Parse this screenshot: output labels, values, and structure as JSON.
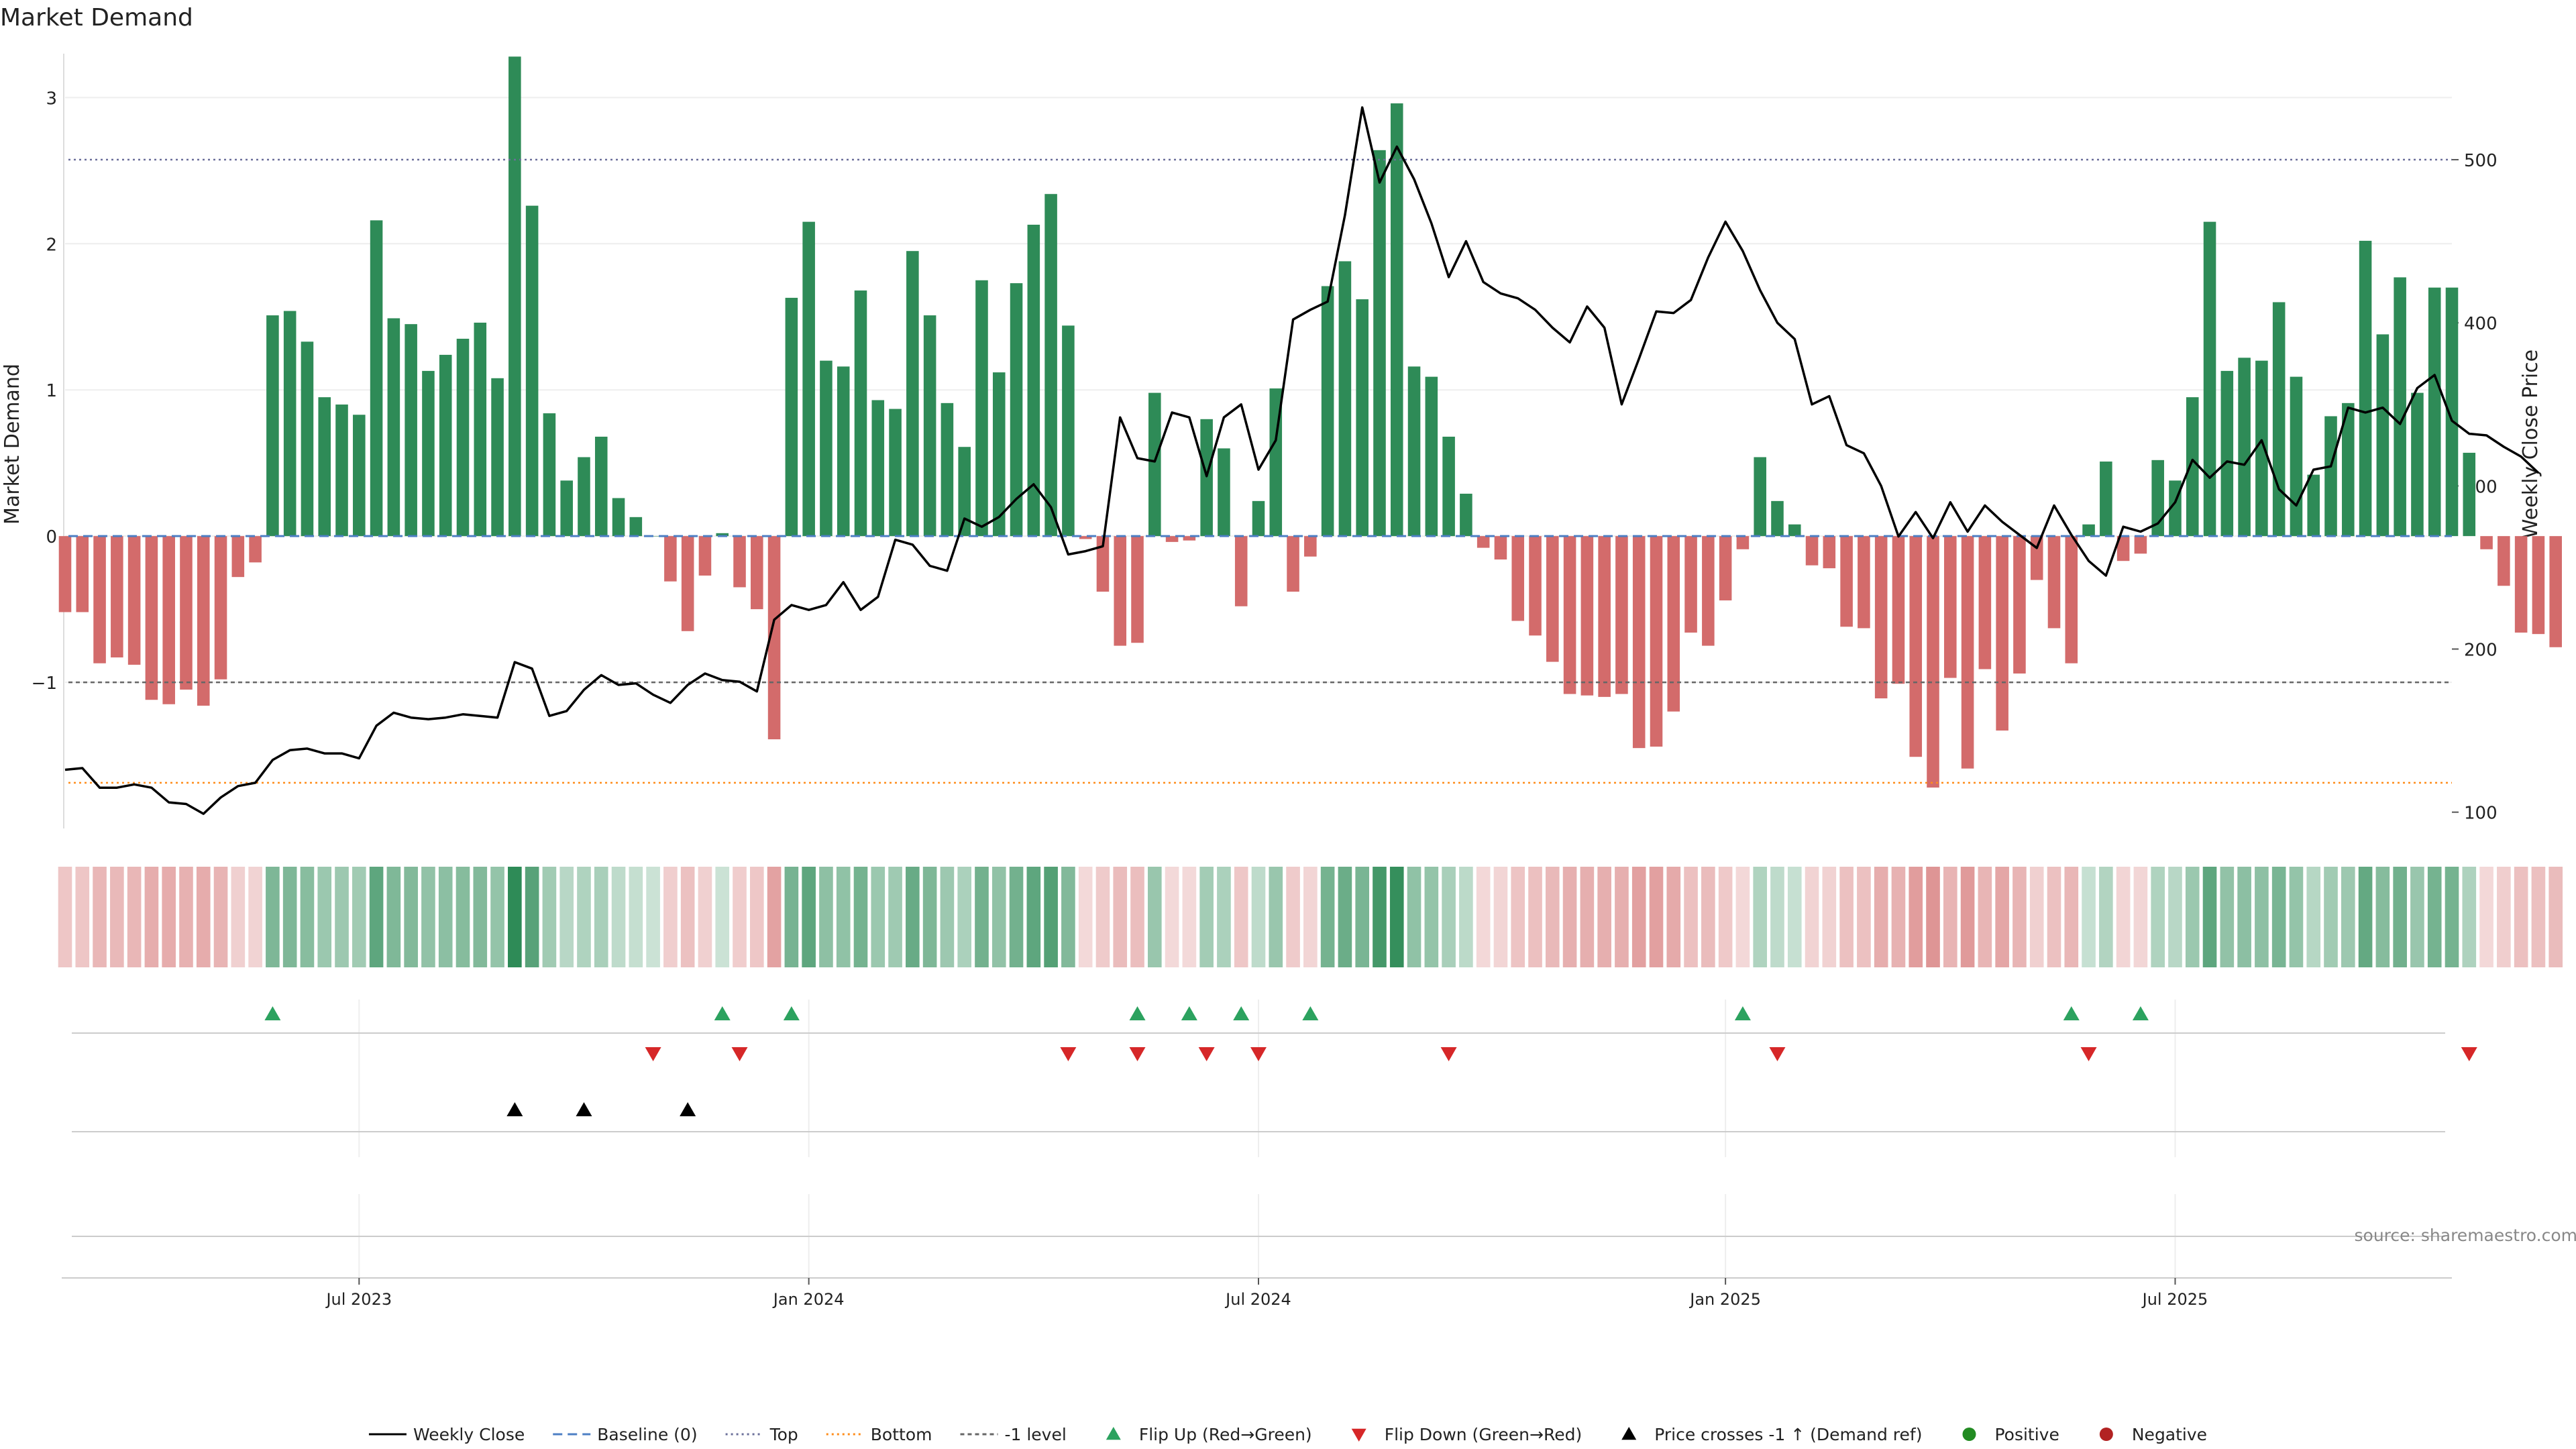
{
  "chart_data": {
    "type": "bar",
    "title": "Market Demand",
    "ylabel": "Market Demand",
    "y2label": "Weekly Close Price",
    "ylim": [
      -2.0,
      3.3
    ],
    "y2lim": [
      90,
      565
    ],
    "yticks": [
      -1,
      0,
      1,
      2,
      3
    ],
    "yticklabels": [
      "−1",
      "0",
      "1",
      "2",
      "3"
    ],
    "y2ticks": [
      100,
      200,
      300,
      400,
      500
    ],
    "y2ticklabels": [
      "100",
      "200",
      "300",
      "400",
      "500"
    ],
    "xlim": [
      "2023-03-06",
      "2025-10-27"
    ],
    "xticks": [
      {
        "date": "2023-07-03",
        "label": "Jul 2023"
      },
      {
        "date": "2024-01-01",
        "label": "Jan 2024"
      },
      {
        "date": "2024-07-01",
        "label": "Jul 2024"
      },
      {
        "date": "2025-01-06",
        "label": "Jan 2025"
      },
      {
        "date": "2025-07-07",
        "label": "Jul 2025"
      }
    ],
    "reference_lines": [
      {
        "name": "Top",
        "axis": "right",
        "value": 500,
        "color": "#6b6f9a"
      },
      {
        "name": "Bottom",
        "axis": "right",
        "value": 118,
        "color": "#ff8c1a"
      },
      {
        "name": "-1 level",
        "axis": "left",
        "value": -1,
        "color": "#666666"
      },
      {
        "name": "Baseline (0)",
        "axis": "left",
        "value": 0,
        "color": "#4d7fc4"
      }
    ],
    "start_date": "2023-03-06",
    "week_step": 1,
    "demand": [
      -0.52,
      -0.52,
      -0.87,
      -0.83,
      -0.88,
      -1.12,
      -1.15,
      -1.05,
      -1.16,
      -0.98,
      -0.28,
      -0.18,
      1.51,
      1.54,
      1.33,
      0.95,
      0.9,
      0.83,
      2.16,
      1.49,
      1.45,
      1.13,
      1.24,
      1.35,
      1.46,
      1.08,
      3.28,
      2.26,
      0.84,
      0.38,
      0.54,
      0.68,
      0.26,
      0.13,
      0.0,
      -0.31,
      -0.65,
      -0.27,
      0.02,
      -0.35,
      -0.5,
      -1.39,
      1.63,
      2.15,
      1.2,
      1.16,
      1.68,
      0.93,
      0.87,
      1.95,
      1.51,
      0.91,
      0.61,
      1.75,
      1.12,
      1.73,
      2.13,
      2.34,
      1.44,
      -0.02,
      -0.38,
      -0.75,
      -0.73,
      0.98,
      -0.04,
      -0.03,
      0.8,
      0.6,
      -0.48,
      0.24,
      1.01,
      -0.38,
      -0.14,
      1.71,
      1.88,
      1.62,
      2.64,
      2.96,
      1.16,
      1.09,
      0.68,
      0.29,
      -0.08,
      -0.16,
      -0.58,
      -0.68,
      -0.86,
      -1.08,
      -1.09,
      -1.1,
      -1.08,
      -1.45,
      -1.44,
      -1.2,
      -0.66,
      -0.75,
      -0.44,
      -0.09,
      0.54,
      0.24,
      0.08,
      -0.2,
      -0.22,
      -0.62,
      -0.63,
      -1.11,
      -1.01,
      -1.51,
      -1.72,
      -0.97,
      -1.59,
      -0.91,
      -1.33,
      -0.94,
      -0.3,
      -0.63,
      -0.87,
      0.08,
      0.51,
      -0.17,
      -0.12,
      0.52,
      0.38,
      0.95,
      2.15,
      1.13,
      1.22,
      1.2,
      1.6,
      1.09,
      0.42,
      0.82,
      0.91,
      2.02,
      1.38,
      1.77,
      0.98,
      1.7,
      1.7,
      0.57,
      -0.09,
      -0.34,
      -0.66,
      -0.67,
      -0.76
    ],
    "weekly_close": [
      126,
      127,
      115,
      115,
      117,
      115,
      106,
      105,
      99,
      109,
      116,
      118,
      132,
      138,
      139,
      136,
      136,
      133,
      153,
      161,
      158,
      157,
      158,
      160,
      159,
      158,
      192,
      188,
      159,
      162,
      175,
      184,
      178,
      179,
      172,
      167,
      178,
      185,
      181,
      180,
      174,
      218,
      227,
      224,
      227,
      241,
      224,
      232,
      267,
      264,
      251,
      248,
      280,
      275,
      281,
      292,
      301,
      287,
      258,
      260,
      263,
      342,
      317,
      315,
      345,
      342,
      306,
      342,
      350,
      310,
      328,
      402,
      408,
      413,
      466,
      532,
      486,
      508,
      488,
      461,
      428,
      450,
      425,
      418,
      415,
      408,
      397,
      388,
      410,
      397,
      350,
      378,
      407,
      406,
      414,
      440,
      462,
      444,
      420,
      400,
      390,
      350,
      355,
      325,
      320,
      300,
      269,
      284,
      268,
      290,
      272,
      288,
      278,
      270,
      262,
      288,
      270,
      254,
      245,
      275,
      272,
      277,
      290,
      316,
      305,
      315,
      313,
      328,
      298,
      288,
      310,
      312,
      348,
      345,
      348,
      338,
      360,
      368,
      340,
      332,
      331,
      324,
      318,
      308
    ],
    "series": [
      {
        "name": "Market Demand",
        "type": "bar",
        "axis": "left",
        "positive_color": "#2e8b57",
        "negative_color": "#d36b6b"
      },
      {
        "name": "Weekly Close",
        "type": "line",
        "axis": "right",
        "color": "#000000"
      }
    ],
    "events": {
      "flip_up_weeks": [
        12,
        38,
        42,
        62,
        65,
        68,
        72,
        97,
        116,
        120
      ],
      "flip_down_weeks": [
        34,
        39,
        58,
        62,
        66,
        69,
        80,
        99,
        117,
        139
      ],
      "price_cross_weeks": [
        26,
        30,
        36
      ]
    },
    "legend": {
      "placement": "bottom",
      "items": [
        {
          "label": "Weekly Close",
          "marker": "line",
          "color": "#000000"
        },
        {
          "label": "Baseline (0)",
          "marker": "dash",
          "color": "#4d7fc4"
        },
        {
          "label": "Top",
          "marker": "dot",
          "color": "#6b6f9a"
        },
        {
          "label": "Bottom",
          "marker": "dot",
          "color": "#ff8c1a"
        },
        {
          "label": "-1 level",
          "marker": "dash-thin",
          "color": "#666666"
        },
        {
          "label": "Flip Up (Red→Green)",
          "marker": "triangle-up",
          "color": "#2ca25f"
        },
        {
          "label": "Flip Down (Green→Red)",
          "marker": "triangle-down",
          "color": "#d62728"
        },
        {
          "label": "Price crosses -1 ↑ (Demand ref)",
          "marker": "triangle-up",
          "color": "#000000"
        },
        {
          "label": "Positive",
          "marker": "circle",
          "color": "#228b22"
        },
        {
          "label": "Negative",
          "marker": "circle",
          "color": "#b22222"
        }
      ]
    },
    "source": "source: sharemaestro.com"
  }
}
